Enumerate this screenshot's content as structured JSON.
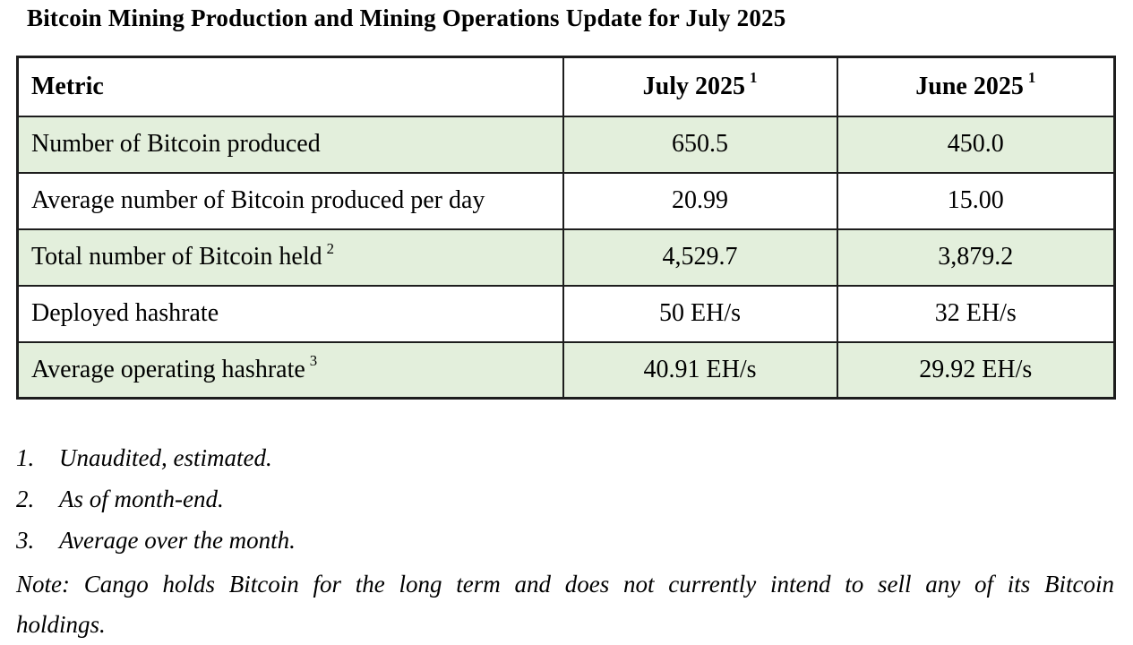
{
  "title": "Bitcoin Mining Production and Mining Operations Update for July 2025",
  "table": {
    "columns": [
      {
        "label": "Metric",
        "sup": ""
      },
      {
        "label": "July 2025",
        "sup": "1"
      },
      {
        "label": "June 2025",
        "sup": "1"
      }
    ],
    "rows": [
      {
        "metric": "Number of Bitcoin produced",
        "metric_sup": "",
        "july_2025": "650.5",
        "june_2025": "450.0"
      },
      {
        "metric": "Average number of Bitcoin produced per day",
        "metric_sup": "",
        "july_2025": "20.99",
        "june_2025": "15.00"
      },
      {
        "metric": "Total number of Bitcoin held",
        "metric_sup": "2",
        "july_2025": "4,529.7",
        "june_2025": "3,879.2"
      },
      {
        "metric": "Deployed hashrate",
        "metric_sup": "",
        "july_2025": "50 EH/s",
        "june_2025": "32 EH/s"
      },
      {
        "metric": "Average operating hashrate",
        "metric_sup": "3",
        "july_2025": "40.91 EH/s",
        "june_2025": "29.92 EH/s"
      }
    ]
  },
  "footnotes": [
    {
      "num": "1.",
      "text": "Unaudited, estimated."
    },
    {
      "num": "2.",
      "text": "As of month-end."
    },
    {
      "num": "3.",
      "text": "Average over the month."
    }
  ],
  "note": {
    "line1": "Note: Cango holds Bitcoin for the long term and does not currently intend to sell any of its Bitcoin",
    "line2": "holdings."
  },
  "colors": {
    "row_highlight_green": "#e3efdc",
    "table_border": "#1d1d1d",
    "page_background": "#ffffff",
    "text": "#000000"
  }
}
